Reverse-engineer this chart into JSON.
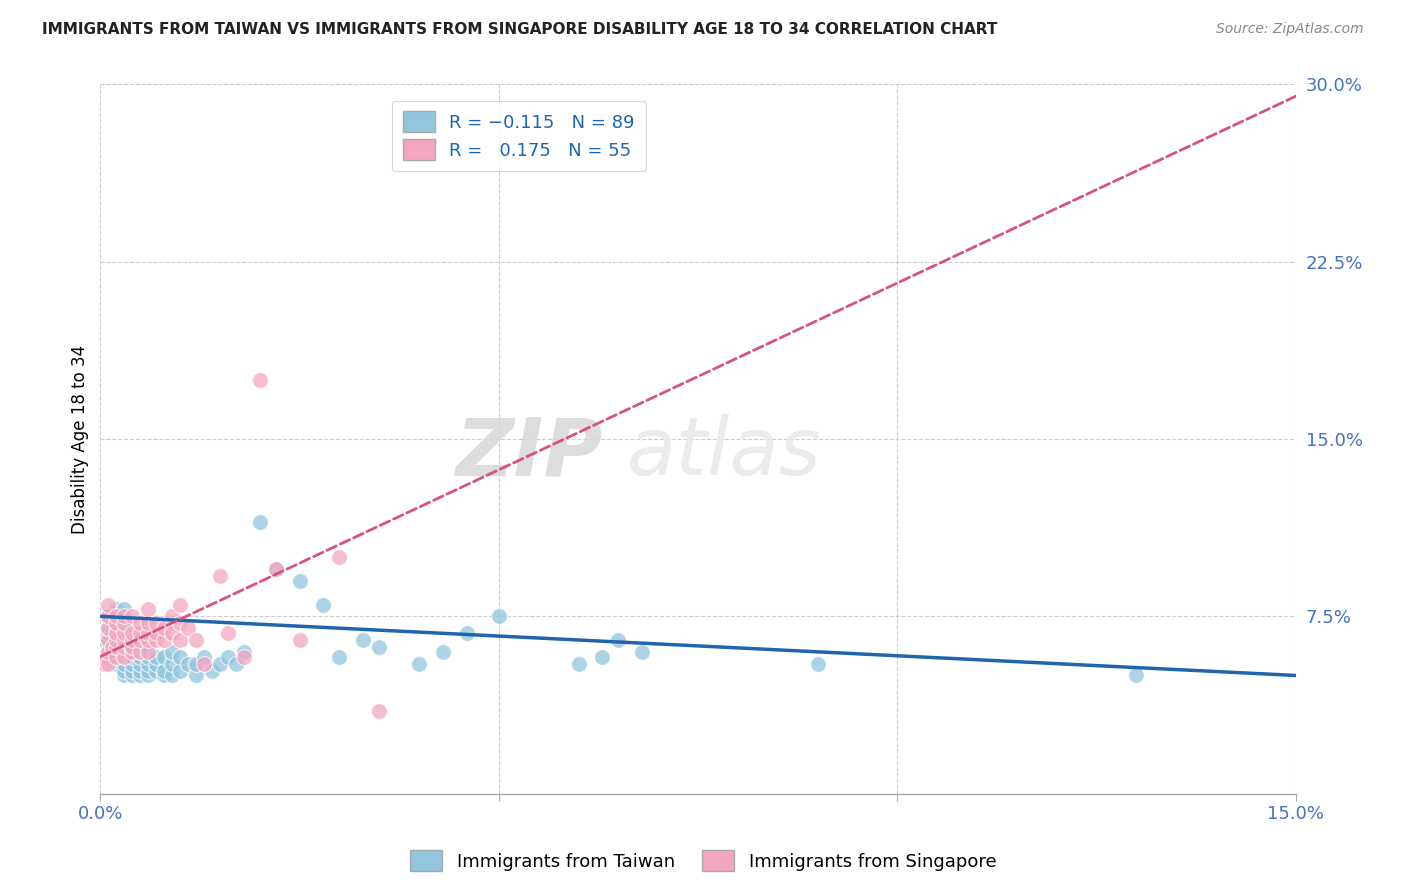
{
  "title": "IMMIGRANTS FROM TAIWAN VS IMMIGRANTS FROM SINGAPORE DISABILITY AGE 18 TO 34 CORRELATION CHART",
  "source": "Source: ZipAtlas.com",
  "ylabel": "Disability Age 18 to 34",
  "x_min": 0.0,
  "x_max": 0.15,
  "y_min": 0.0,
  "y_max": 0.3,
  "taiwan_color": "#92C5DE",
  "singapore_color": "#F4A6C0",
  "taiwan_line_color": "#2166AC",
  "singapore_line_color": "#D6537A",
  "taiwan_R": -0.115,
  "taiwan_N": 89,
  "singapore_R": 0.175,
  "singapore_N": 55,
  "legend_label_taiwan": "Immigrants from Taiwan",
  "legend_label_singapore": "Immigrants from Singapore",
  "watermark_zip": "ZIP",
  "watermark_atlas": "atlas",
  "taiwan_x": [
    0.0005,
    0.001,
    0.001,
    0.001,
    0.001,
    0.001,
    0.0015,
    0.0015,
    0.002,
    0.002,
    0.002,
    0.002,
    0.002,
    0.002,
    0.002,
    0.002,
    0.002,
    0.002,
    0.0025,
    0.003,
    0.003,
    0.003,
    0.003,
    0.003,
    0.003,
    0.003,
    0.003,
    0.003,
    0.003,
    0.003,
    0.003,
    0.0035,
    0.004,
    0.004,
    0.004,
    0.004,
    0.004,
    0.004,
    0.004,
    0.005,
    0.005,
    0.005,
    0.005,
    0.005,
    0.005,
    0.005,
    0.005,
    0.006,
    0.006,
    0.006,
    0.006,
    0.006,
    0.007,
    0.007,
    0.007,
    0.008,
    0.008,
    0.008,
    0.009,
    0.009,
    0.009,
    0.01,
    0.01,
    0.011,
    0.012,
    0.012,
    0.013,
    0.014,
    0.015,
    0.016,
    0.017,
    0.018,
    0.02,
    0.022,
    0.025,
    0.028,
    0.03,
    0.033,
    0.035,
    0.04,
    0.043,
    0.046,
    0.05,
    0.06,
    0.063,
    0.065,
    0.068,
    0.09,
    0.13
  ],
  "taiwan_y": [
    0.065,
    0.06,
    0.065,
    0.068,
    0.07,
    0.075,
    0.062,
    0.068,
    0.055,
    0.058,
    0.06,
    0.062,
    0.065,
    0.068,
    0.07,
    0.072,
    0.075,
    0.078,
    0.06,
    0.05,
    0.052,
    0.055,
    0.058,
    0.06,
    0.062,
    0.065,
    0.068,
    0.07,
    0.072,
    0.075,
    0.078,
    0.058,
    0.05,
    0.052,
    0.055,
    0.058,
    0.062,
    0.065,
    0.068,
    0.05,
    0.052,
    0.055,
    0.058,
    0.06,
    0.062,
    0.065,
    0.068,
    0.05,
    0.052,
    0.055,
    0.058,
    0.062,
    0.052,
    0.055,
    0.058,
    0.05,
    0.052,
    0.058,
    0.05,
    0.055,
    0.06,
    0.052,
    0.058,
    0.055,
    0.05,
    0.055,
    0.058,
    0.052,
    0.055,
    0.058,
    0.055,
    0.06,
    0.115,
    0.095,
    0.09,
    0.08,
    0.058,
    0.065,
    0.062,
    0.055,
    0.06,
    0.068,
    0.075,
    0.055,
    0.058,
    0.065,
    0.06,
    0.055,
    0.05
  ],
  "singapore_x": [
    0.0005,
    0.001,
    0.001,
    0.001,
    0.001,
    0.001,
    0.001,
    0.0015,
    0.002,
    0.002,
    0.002,
    0.002,
    0.002,
    0.002,
    0.003,
    0.003,
    0.003,
    0.003,
    0.003,
    0.003,
    0.004,
    0.004,
    0.004,
    0.004,
    0.004,
    0.005,
    0.005,
    0.005,
    0.005,
    0.006,
    0.006,
    0.006,
    0.006,
    0.006,
    0.007,
    0.007,
    0.007,
    0.008,
    0.008,
    0.009,
    0.009,
    0.01,
    0.01,
    0.01,
    0.011,
    0.012,
    0.013,
    0.015,
    0.016,
    0.018,
    0.02,
    0.022,
    0.025,
    0.03,
    0.035
  ],
  "singapore_y": [
    0.055,
    0.055,
    0.06,
    0.065,
    0.07,
    0.075,
    0.08,
    0.062,
    0.058,
    0.062,
    0.065,
    0.068,
    0.072,
    0.075,
    0.058,
    0.062,
    0.065,
    0.068,
    0.072,
    0.075,
    0.06,
    0.062,
    0.065,
    0.068,
    0.075,
    0.06,
    0.065,
    0.068,
    0.072,
    0.06,
    0.065,
    0.068,
    0.072,
    0.078,
    0.065,
    0.068,
    0.072,
    0.065,
    0.07,
    0.068,
    0.075,
    0.065,
    0.072,
    0.08,
    0.07,
    0.065,
    0.055,
    0.092,
    0.068,
    0.058,
    0.175,
    0.095,
    0.065,
    0.1,
    0.035
  ]
}
